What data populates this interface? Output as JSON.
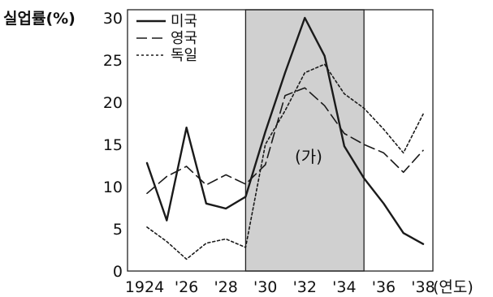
{
  "chart_data": {
    "type": "line",
    "title": "",
    "ylabel": "실업률(%)",
    "xlabel_unit": "(연도)",
    "ylim": [
      0,
      30
    ],
    "xlim": [
      1924,
      1938
    ],
    "y_ticks": [
      0,
      5,
      10,
      15,
      20,
      25,
      30
    ],
    "x_ticks": [
      {
        "value": 1924,
        "label": "1924"
      },
      {
        "value": 1926,
        "label": "'26"
      },
      {
        "value": 1928,
        "label": "'28"
      },
      {
        "value": 1930,
        "label": "'30"
      },
      {
        "value": 1932,
        "label": "'32"
      },
      {
        "value": 1934,
        "label": "'34"
      },
      {
        "value": 1936,
        "label": "'36"
      },
      {
        "value": 1938,
        "label": "'38"
      }
    ],
    "shaded_region": {
      "x0": 1929,
      "x1": 1935,
      "color": "#d0d0d0",
      "label": "(가)"
    },
    "legend_position": "top-left",
    "series": [
      {
        "name": "미국",
        "style": "solid",
        "x": [
          1924,
          1925,
          1926,
          1927,
          1928,
          1929,
          1930,
          1931,
          1932,
          1933,
          1934,
          1935,
          1936,
          1937,
          1938
        ],
        "y": [
          12.8,
          6.0,
          17.0,
          8.0,
          7.4,
          8.8,
          16.5,
          23.5,
          30.0,
          25.5,
          14.8,
          11.0,
          8.0,
          4.5,
          3.2
        ]
      },
      {
        "name": "영국",
        "style": "dashed",
        "x": [
          1924,
          1925,
          1926,
          1927,
          1928,
          1929,
          1930,
          1931,
          1932,
          1933,
          1934,
          1935,
          1936,
          1937,
          1938
        ],
        "y": [
          9.2,
          11.2,
          12.4,
          10.2,
          11.4,
          10.3,
          12.6,
          20.8,
          21.7,
          19.6,
          16.3,
          15.0,
          14.0,
          11.7,
          14.3
        ]
      },
      {
        "name": "독일",
        "style": "dotted",
        "x": [
          1924,
          1925,
          1926,
          1927,
          1928,
          1929,
          1930,
          1931,
          1932,
          1933,
          1934,
          1935,
          1936,
          1937,
          1938
        ],
        "y": [
          5.2,
          3.5,
          1.4,
          3.3,
          3.8,
          2.8,
          15.0,
          19.0,
          23.5,
          24.5,
          21.0,
          19.3,
          16.8,
          14.0,
          18.6
        ]
      }
    ]
  }
}
